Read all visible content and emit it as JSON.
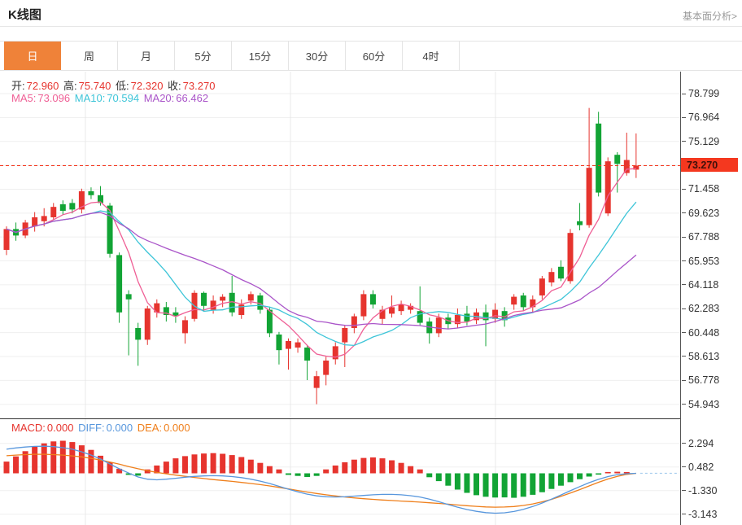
{
  "header": {
    "title": "K线图",
    "link": "基本面分析>"
  },
  "tabs": [
    {
      "label": "日",
      "active": true
    },
    {
      "label": "周",
      "active": false
    },
    {
      "label": "月",
      "active": false
    },
    {
      "label": "5分",
      "active": false
    },
    {
      "label": "15分",
      "active": false
    },
    {
      "label": "30分",
      "active": false
    },
    {
      "label": "60分",
      "active": false
    },
    {
      "label": "4时",
      "active": false
    }
  ],
  "ohlc_bar": {
    "open_label": "开:",
    "open": "72.960",
    "high_label": "高:",
    "high": "75.740",
    "low_label": "低:",
    "low": "72.320",
    "close_label": "收:",
    "close": "73.270"
  },
  "ma_bar": {
    "ma5_label": "MA5:",
    "ma5": "73.096",
    "ma10_label": "MA10:",
    "ma10": "70.594",
    "ma20_label": "MA20:",
    "ma20": "66.462"
  },
  "macd_bar": {
    "macd_label": "MACD:",
    "macd": "0.000",
    "diff_label": "DIFF:",
    "diff": "0.000",
    "dea_label": "DEA:",
    "dea": "0.000"
  },
  "price_axis": {
    "labels": [
      "78.799",
      "76.964",
      "75.129",
      "71.458",
      "69.623",
      "67.788",
      "65.953",
      "64.118",
      "62.283",
      "60.448",
      "58.613",
      "56.778",
      "54.943"
    ],
    "badge": "73.270"
  },
  "macd_axis": {
    "labels": [
      "2.294",
      "0.482",
      "-1.330",
      "-3.143"
    ]
  },
  "colors": {
    "accent_orange": "#ef8239",
    "up_red": "#e6342e",
    "down_green": "#12a435",
    "badge_red": "#f4381f",
    "badge_text": "#40100a",
    "dashed_price_line": "#f4381f",
    "ma5_pink": "#ef5f95",
    "ma10_cyan": "#3ec5d8",
    "ma20_purple": "#aa55c9",
    "diff_blue": "#5897dd",
    "dea_orange": "#ef7f1b",
    "grid": "#efefef",
    "vgrid": "#e8e8e8",
    "axis_line": "#555",
    "panel_divider": "#333",
    "zero_dash": "#a8cdee"
  },
  "chart_data": {
    "type": "candlestick+macd",
    "title": "K线图",
    "main": {
      "current_price": 73.27,
      "gridline_values": [
        78.799,
        76.964,
        75.129,
        73.294,
        71.458,
        69.623,
        67.788,
        65.953,
        64.118,
        62.283,
        60.448,
        58.613,
        56.778,
        54.943
      ],
      "ylim": [
        54.0,
        80.5
      ],
      "overlays": [
        "MA5",
        "MA10",
        "MA20"
      ],
      "candle_format": "[open, high, low, close]",
      "candles": [
        [
          66.8,
          68.6,
          66.4,
          68.4
        ],
        [
          68.4,
          68.9,
          67.5,
          67.9
        ],
        [
          67.9,
          69.1,
          67.7,
          68.9
        ],
        [
          68.6,
          69.7,
          68.2,
          69.3
        ],
        [
          69.0,
          70.0,
          68.6,
          69.4
        ],
        [
          69.3,
          70.4,
          69.1,
          70.1
        ],
        [
          70.3,
          70.6,
          69.5,
          69.8
        ],
        [
          70.4,
          70.7,
          69.6,
          69.9
        ],
        [
          69.9,
          71.5,
          69.6,
          71.3
        ],
        [
          71.3,
          71.6,
          70.7,
          71.0
        ],
        [
          71.0,
          71.7,
          70.2,
          70.4
        ],
        [
          70.2,
          70.4,
          66.2,
          66.5
        ],
        [
          66.4,
          66.6,
          61.2,
          62.0
        ],
        [
          63.4,
          63.7,
          58.7,
          63.0
        ],
        [
          60.8,
          61.2,
          57.9,
          59.9
        ],
        [
          59.9,
          62.5,
          59.5,
          62.3
        ],
        [
          62.0,
          63.0,
          61.6,
          62.7
        ],
        [
          62.4,
          62.8,
          61.3,
          61.8
        ],
        [
          62.0,
          62.4,
          61.2,
          61.7
        ],
        [
          60.4,
          61.7,
          59.6,
          61.4
        ],
        [
          61.5,
          63.7,
          61.3,
          63.5
        ],
        [
          63.5,
          63.6,
          62.1,
          62.5
        ],
        [
          62.2,
          63.3,
          61.9,
          62.9
        ],
        [
          62.9,
          63.4,
          62.4,
          63.2
        ],
        [
          63.5,
          64.8,
          61.7,
          62.0
        ],
        [
          61.8,
          63.0,
          61.5,
          62.6
        ],
        [
          62.9,
          63.6,
          62.6,
          63.4
        ],
        [
          63.3,
          63.5,
          61.9,
          62.2
        ],
        [
          62.2,
          62.4,
          60.1,
          60.4
        ],
        [
          60.3,
          60.5,
          58.0,
          59.1
        ],
        [
          59.2,
          60.0,
          57.6,
          59.8
        ],
        [
          59.3,
          60.0,
          58.9,
          59.7
        ],
        [
          59.3,
          59.5,
          56.8,
          58.3
        ],
        [
          56.2,
          57.5,
          54.95,
          57.1
        ],
        [
          57.2,
          58.6,
          56.4,
          58.3
        ],
        [
          58.4,
          59.7,
          58.0,
          59.4
        ],
        [
          59.7,
          61.0,
          57.8,
          60.8
        ],
        [
          60.8,
          61.9,
          60.4,
          61.7
        ],
        [
          61.7,
          63.7,
          61.4,
          63.4
        ],
        [
          63.4,
          63.7,
          62.3,
          62.6
        ],
        [
          61.5,
          62.5,
          61.1,
          62.2
        ],
        [
          61.9,
          63.3,
          61.6,
          62.4
        ],
        [
          62.1,
          62.9,
          61.8,
          62.6
        ],
        [
          62.2,
          62.7,
          61.9,
          62.5
        ],
        [
          62.1,
          64.0,
          61.0,
          61.2
        ],
        [
          61.3,
          61.6,
          59.6,
          60.4
        ],
        [
          60.4,
          61.9,
          60.1,
          61.6
        ],
        [
          61.6,
          61.9,
          60.7,
          61.1
        ],
        [
          61.1,
          62.3,
          60.8,
          61.8
        ],
        [
          61.9,
          62.5,
          61.0,
          61.3
        ],
        [
          61.4,
          62.3,
          61.1,
          62.0
        ],
        [
          62.0,
          62.6,
          59.4,
          61.4
        ],
        [
          61.5,
          62.7,
          61.2,
          62.2
        ],
        [
          62.1,
          62.4,
          60.9,
          61.4
        ],
        [
          62.6,
          63.4,
          62.2,
          63.2
        ],
        [
          63.3,
          63.5,
          62.1,
          62.4
        ],
        [
          62.4,
          63.3,
          62.0,
          63.0
        ],
        [
          63.3,
          64.8,
          63.0,
          64.6
        ],
        [
          64.3,
          65.4,
          64.0,
          65.1
        ],
        [
          65.5,
          66.0,
          64.4,
          64.6
        ],
        [
          64.4,
          68.4,
          64.2,
          68.1
        ],
        [
          69.0,
          70.4,
          68.3,
          68.7
        ],
        [
          68.7,
          77.7,
          68.5,
          73.1
        ],
        [
          76.5,
          77.4,
          70.9,
          71.2
        ],
        [
          69.6,
          73.9,
          69.4,
          73.6
        ],
        [
          74.1,
          74.3,
          71.2,
          73.4
        ],
        [
          72.7,
          75.8,
          72.5,
          73.7
        ],
        [
          72.96,
          75.74,
          72.32,
          73.27
        ]
      ]
    },
    "macd": {
      "gridline_values": [
        2.294,
        0.482,
        -1.33,
        -3.143
      ],
      "histogram": [
        0.9,
        1.3,
        1.7,
        2.05,
        2.3,
        2.45,
        2.5,
        2.4,
        2.15,
        1.8,
        1.35,
        0.85,
        0.35,
        -0.12,
        -0.18,
        0.3,
        0.6,
        0.9,
        1.15,
        1.32,
        1.45,
        1.52,
        1.55,
        1.5,
        1.4,
        1.25,
        1.05,
        0.8,
        0.55,
        0.3,
        -0.12,
        -0.2,
        -0.28,
        -0.2,
        0.3,
        0.6,
        0.85,
        1.05,
        1.18,
        1.22,
        1.15,
        1.0,
        0.8,
        0.55,
        0.3,
        -0.3,
        -0.6,
        -0.95,
        -1.25,
        -1.5,
        -1.68,
        -1.8,
        -1.86,
        -1.85,
        -1.88,
        -1.8,
        -1.65,
        -1.45,
        -1.2,
        -0.95,
        -0.68,
        -0.45,
        -0.25,
        -0.1,
        0.1,
        0.12,
        0.05,
        0.0
      ],
      "diff": [
        1.85,
        1.95,
        2.02,
        2.07,
        2.08,
        2.05,
        1.97,
        1.85,
        1.65,
        1.4,
        1.1,
        0.72,
        0.35,
        0.02,
        -0.28,
        -0.45,
        -0.5,
        -0.45,
        -0.38,
        -0.3,
        -0.24,
        -0.2,
        -0.18,
        -0.2,
        -0.25,
        -0.33,
        -0.45,
        -0.6,
        -0.78,
        -1.0,
        -1.22,
        -1.42,
        -1.6,
        -1.73,
        -1.8,
        -1.82,
        -1.8,
        -1.75,
        -1.7,
        -1.65,
        -1.62,
        -1.62,
        -1.65,
        -1.72,
        -1.82,
        -1.98,
        -2.18,
        -2.4,
        -2.6,
        -2.78,
        -2.92,
        -3.02,
        -3.06,
        -3.03,
        -2.93,
        -2.77,
        -2.55,
        -2.28,
        -1.98,
        -1.66,
        -1.34,
        -1.02,
        -0.72,
        -0.46,
        -0.25,
        -0.1,
        -0.03,
        0.0
      ],
      "dea": [
        1.35,
        1.4,
        1.44,
        1.46,
        1.46,
        1.44,
        1.4,
        1.34,
        1.26,
        1.15,
        1.02,
        0.87,
        0.7,
        0.52,
        0.35,
        0.2,
        0.07,
        -0.04,
        -0.14,
        -0.23,
        -0.32,
        -0.4,
        -0.48,
        -0.55,
        -0.62,
        -0.7,
        -0.78,
        -0.87,
        -0.97,
        -1.08,
        -1.2,
        -1.32,
        -1.44,
        -1.55,
        -1.65,
        -1.74,
        -1.82,
        -1.89,
        -1.95,
        -2.0,
        -2.05,
        -2.09,
        -2.13,
        -2.17,
        -2.21,
        -2.26,
        -2.31,
        -2.37,
        -2.43,
        -2.49,
        -2.54,
        -2.58,
        -2.6,
        -2.59,
        -2.55,
        -2.47,
        -2.35,
        -2.19,
        -2.0,
        -1.77,
        -1.52,
        -1.25,
        -0.97,
        -0.69,
        -0.44,
        -0.23,
        -0.08,
        0.0
      ]
    }
  }
}
